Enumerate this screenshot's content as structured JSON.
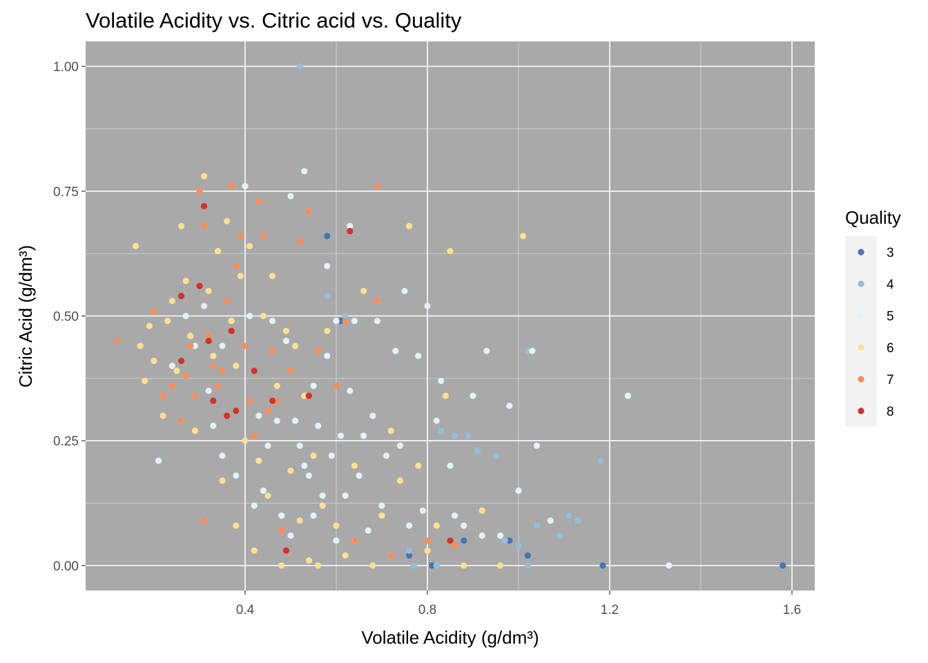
{
  "chart_data": {
    "type": "scatter",
    "title": "Volatile Acidity vs. Citric acid vs. Quality",
    "xlabel": "Volatile Acidity (g/dm³)",
    "ylabel": "Citric Acid (g/dm³)",
    "xlim": [
      0.05,
      1.65
    ],
    "ylim": [
      -0.05,
      1.05
    ],
    "x_ticks": [
      0.4,
      0.8,
      1.2,
      1.6
    ],
    "x_tick_labels": [
      "0.4",
      "0.8",
      "1.2",
      "1.6"
    ],
    "y_ticks": [
      0.0,
      0.25,
      0.5,
      0.75,
      1.0
    ],
    "y_tick_labels": [
      "0.00",
      "0.25",
      "0.50",
      "0.75",
      "1.00"
    ],
    "grid": true,
    "background_color": "#a9a9a9",
    "legend": {
      "title": "Quality",
      "placement": "right",
      "entries": [
        {
          "label": "3",
          "color": "#4575b4"
        },
        {
          "label": "4",
          "color": "#91bfdb"
        },
        {
          "label": "5",
          "color": "#e0f3f8"
        },
        {
          "label": "6",
          "color": "#fee090"
        },
        {
          "label": "7",
          "color": "#fc8d59"
        },
        {
          "label": "8",
          "color": "#d73027"
        }
      ]
    },
    "series": [
      {
        "name": "3",
        "color": "#4575b4",
        "points": [
          [
            0.58,
            0.66
          ],
          [
            0.61,
            0.49
          ],
          [
            0.76,
            0.02
          ],
          [
            0.81,
            0.0
          ],
          [
            0.88,
            0.05
          ],
          [
            0.98,
            0.05
          ],
          [
            1.02,
            0.02
          ],
          [
            1.185,
            0.0
          ],
          [
            1.58,
            0.0
          ]
        ]
      },
      {
        "name": "4",
        "color": "#91bfdb",
        "points": [
          [
            0.52,
            1.0
          ],
          [
            0.58,
            0.54
          ],
          [
            0.6,
            0.49
          ],
          [
            0.62,
            0.5
          ],
          [
            0.76,
            0.03
          ],
          [
            0.77,
            0.0
          ],
          [
            0.82,
            0.0
          ],
          [
            0.83,
            0.27
          ],
          [
            0.86,
            0.26
          ],
          [
            0.89,
            0.26
          ],
          [
            0.91,
            0.23
          ],
          [
            0.95,
            0.22
          ],
          [
            0.97,
            0.05
          ],
          [
            1.0,
            0.04
          ],
          [
            1.02,
            0.0
          ],
          [
            1.04,
            0.08
          ],
          [
            1.09,
            0.06
          ],
          [
            1.11,
            0.1
          ],
          [
            1.13,
            0.09
          ],
          [
            1.18,
            0.21
          ],
          [
            1.02,
            0.43
          ]
        ]
      },
      {
        "name": "5",
        "color": "#e0f3f8",
        "points": [
          [
            0.21,
            0.21
          ],
          [
            0.24,
            0.4
          ],
          [
            0.27,
            0.5
          ],
          [
            0.29,
            0.44
          ],
          [
            0.31,
            0.52
          ],
          [
            0.32,
            0.35
          ],
          [
            0.33,
            0.28
          ],
          [
            0.35,
            0.22
          ],
          [
            0.35,
            0.44
          ],
          [
            0.37,
            0.49
          ],
          [
            0.38,
            0.18
          ],
          [
            0.4,
            0.76
          ],
          [
            0.41,
            0.5
          ],
          [
            0.42,
            0.12
          ],
          [
            0.43,
            0.3
          ],
          [
            0.44,
            0.15
          ],
          [
            0.45,
            0.24
          ],
          [
            0.46,
            0.49
          ],
          [
            0.47,
            0.29
          ],
          [
            0.48,
            0.1
          ],
          [
            0.49,
            0.45
          ],
          [
            0.5,
            0.74
          ],
          [
            0.5,
            0.06
          ],
          [
            0.51,
            0.29
          ],
          [
            0.52,
            0.24
          ],
          [
            0.53,
            0.79
          ],
          [
            0.53,
            0.2
          ],
          [
            0.54,
            0.18
          ],
          [
            0.55,
            0.1
          ],
          [
            0.55,
            0.36
          ],
          [
            0.56,
            0.28
          ],
          [
            0.57,
            0.14
          ],
          [
            0.58,
            0.42
          ],
          [
            0.58,
            0.6
          ],
          [
            0.59,
            0.22
          ],
          [
            0.6,
            0.05
          ],
          [
            0.6,
            0.49
          ],
          [
            0.61,
            0.26
          ],
          [
            0.62,
            0.14
          ],
          [
            0.63,
            0.35
          ],
          [
            0.63,
            0.68
          ],
          [
            0.64,
            0.49
          ],
          [
            0.65,
            0.18
          ],
          [
            0.66,
            0.26
          ],
          [
            0.67,
            0.07
          ],
          [
            0.68,
            0.3
          ],
          [
            0.69,
            0.49
          ],
          [
            0.7,
            0.12
          ],
          [
            0.71,
            0.22
          ],
          [
            0.72,
            0.02
          ],
          [
            0.73,
            0.43
          ],
          [
            0.74,
            0.24
          ],
          [
            0.75,
            0.55
          ],
          [
            0.76,
            0.08
          ],
          [
            0.78,
            0.42
          ],
          [
            0.79,
            0.11
          ],
          [
            0.8,
            0.52
          ],
          [
            0.82,
            0.29
          ],
          [
            0.83,
            0.37
          ],
          [
            0.85,
            0.2
          ],
          [
            0.86,
            0.1
          ],
          [
            0.88,
            0.08
          ],
          [
            0.9,
            0.34
          ],
          [
            0.92,
            0.06
          ],
          [
            0.93,
            0.43
          ],
          [
            0.96,
            0.06
          ],
          [
            0.98,
            0.32
          ],
          [
            1.0,
            0.15
          ],
          [
            1.03,
            0.43
          ],
          [
            1.04,
            0.24
          ],
          [
            1.07,
            0.09
          ],
          [
            1.24,
            0.34
          ],
          [
            1.33,
            0.0
          ]
        ]
      },
      {
        "name": "6",
        "color": "#fee090",
        "points": [
          [
            0.16,
            0.64
          ],
          [
            0.17,
            0.44
          ],
          [
            0.18,
            0.37
          ],
          [
            0.19,
            0.48
          ],
          [
            0.2,
            0.41
          ],
          [
            0.22,
            0.3
          ],
          [
            0.23,
            0.49
          ],
          [
            0.24,
            0.53
          ],
          [
            0.25,
            0.39
          ],
          [
            0.26,
            0.68
          ],
          [
            0.27,
            0.57
          ],
          [
            0.28,
            0.46
          ],
          [
            0.29,
            0.27
          ],
          [
            0.3,
            0.75
          ],
          [
            0.31,
            0.78
          ],
          [
            0.32,
            0.55
          ],
          [
            0.33,
            0.42
          ],
          [
            0.34,
            0.63
          ],
          [
            0.35,
            0.17
          ],
          [
            0.36,
            0.69
          ],
          [
            0.37,
            0.49
          ],
          [
            0.38,
            0.4
          ],
          [
            0.38,
            0.08
          ],
          [
            0.39,
            0.58
          ],
          [
            0.4,
            0.25
          ],
          [
            0.41,
            0.64
          ],
          [
            0.42,
            0.03
          ],
          [
            0.43,
            0.21
          ],
          [
            0.44,
            0.5
          ],
          [
            0.45,
            0.14
          ],
          [
            0.46,
            0.58
          ],
          [
            0.47,
            0.36
          ],
          [
            0.48,
            0.0
          ],
          [
            0.49,
            0.47
          ],
          [
            0.5,
            0.19
          ],
          [
            0.51,
            0.44
          ],
          [
            0.52,
            0.09
          ],
          [
            0.53,
            0.34
          ],
          [
            0.54,
            0.01
          ],
          [
            0.55,
            0.22
          ],
          [
            0.56,
            0.0
          ],
          [
            0.57,
            0.12
          ],
          [
            0.58,
            0.47
          ],
          [
            0.6,
            0.08
          ],
          [
            0.62,
            0.02
          ],
          [
            0.64,
            0.2
          ],
          [
            0.66,
            0.55
          ],
          [
            0.68,
            0.0
          ],
          [
            0.7,
            0.1
          ],
          [
            0.72,
            0.27
          ],
          [
            0.74,
            0.17
          ],
          [
            0.76,
            0.68
          ],
          [
            0.78,
            0.2
          ],
          [
            0.8,
            0.03
          ],
          [
            0.82,
            0.08
          ],
          [
            0.84,
            0.34
          ],
          [
            0.85,
            0.63
          ],
          [
            0.88,
            0.0
          ],
          [
            0.92,
            0.11
          ],
          [
            0.96,
            0.0
          ],
          [
            1.01,
            0.66
          ]
        ]
      },
      {
        "name": "7",
        "color": "#fc8d59",
        "points": [
          [
            0.12,
            0.45
          ],
          [
            0.2,
            0.51
          ],
          [
            0.22,
            0.34
          ],
          [
            0.24,
            0.36
          ],
          [
            0.26,
            0.29
          ],
          [
            0.27,
            0.38
          ],
          [
            0.28,
            0.44
          ],
          [
            0.29,
            0.34
          ],
          [
            0.3,
            0.75
          ],
          [
            0.31,
            0.68
          ],
          [
            0.31,
            0.09
          ],
          [
            0.32,
            0.46
          ],
          [
            0.33,
            0.4
          ],
          [
            0.34,
            0.36
          ],
          [
            0.35,
            0.39
          ],
          [
            0.36,
            0.53
          ],
          [
            0.37,
            0.76
          ],
          [
            0.38,
            0.6
          ],
          [
            0.39,
            0.66
          ],
          [
            0.4,
            0.44
          ],
          [
            0.41,
            0.33
          ],
          [
            0.42,
            0.26
          ],
          [
            0.43,
            0.73
          ],
          [
            0.44,
            0.66
          ],
          [
            0.45,
            0.31
          ],
          [
            0.46,
            0.43
          ],
          [
            0.47,
            0.33
          ],
          [
            0.48,
            0.07
          ],
          [
            0.5,
            0.39
          ],
          [
            0.52,
            0.65
          ],
          [
            0.54,
            0.71
          ],
          [
            0.56,
            0.43
          ],
          [
            0.6,
            0.36
          ],
          [
            0.62,
            0.49
          ],
          [
            0.64,
            0.05
          ],
          [
            0.69,
            0.76
          ],
          [
            0.69,
            0.53
          ],
          [
            0.72,
            0.02
          ],
          [
            0.8,
            0.05
          ],
          [
            0.86,
            0.04
          ]
        ]
      },
      {
        "name": "8",
        "color": "#d73027",
        "points": [
          [
            0.26,
            0.54
          ],
          [
            0.3,
            0.56
          ],
          [
            0.31,
            0.72
          ],
          [
            0.32,
            0.45
          ],
          [
            0.33,
            0.33
          ],
          [
            0.36,
            0.3
          ],
          [
            0.38,
            0.31
          ],
          [
            0.42,
            0.39
          ],
          [
            0.46,
            0.33
          ],
          [
            0.49,
            0.03
          ],
          [
            0.54,
            0.34
          ],
          [
            0.63,
            0.67
          ],
          [
            0.85,
            0.05
          ],
          [
            0.26,
            0.41
          ],
          [
            0.37,
            0.47
          ]
        ]
      }
    ]
  }
}
